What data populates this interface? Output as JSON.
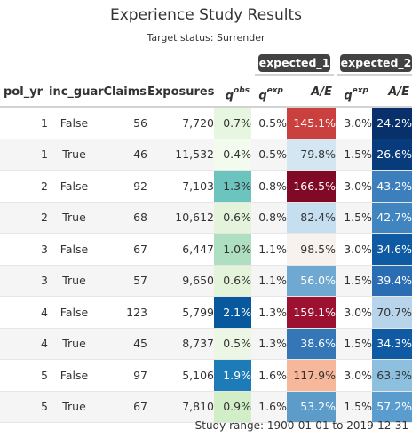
{
  "title": "Experience Study Results",
  "subtitle": "Target status: Surrender",
  "spanners": {
    "expected_1": "expected_1",
    "expected_2": "expected_2"
  },
  "headers": {
    "pol_yr": "pol_yr",
    "inc_guar": "inc_guar",
    "claims": "Claims",
    "exposures": "Exposures",
    "q_obs_base": "q",
    "q_obs_sup": "obs",
    "q_exp_base": "q",
    "q_exp_sup": "exp",
    "ae": "A/E",
    "q_exp2_base": "q",
    "q_exp2_sup": "exp",
    "ae2": "A/E"
  },
  "rows": [
    {
      "pol_yr": "1",
      "inc_guar": "False",
      "claims": "56",
      "exposures": "7,720",
      "q_obs": "0.7%",
      "q_exp1": "0.5%",
      "ae1": "145.1%",
      "q_exp2": "3.0%",
      "ae2": "24.2%"
    },
    {
      "pol_yr": "1",
      "inc_guar": "True",
      "claims": "46",
      "exposures": "11,532",
      "q_obs": "0.4%",
      "q_exp1": "0.5%",
      "ae1": "79.8%",
      "q_exp2": "1.5%",
      "ae2": "26.6%"
    },
    {
      "pol_yr": "2",
      "inc_guar": "False",
      "claims": "92",
      "exposures": "7,103",
      "q_obs": "1.3%",
      "q_exp1": "0.8%",
      "ae1": "166.5%",
      "q_exp2": "3.0%",
      "ae2": "43.2%"
    },
    {
      "pol_yr": "2",
      "inc_guar": "True",
      "claims": "68",
      "exposures": "10,612",
      "q_obs": "0.6%",
      "q_exp1": "0.8%",
      "ae1": "82.4%",
      "q_exp2": "1.5%",
      "ae2": "42.7%"
    },
    {
      "pol_yr": "3",
      "inc_guar": "False",
      "claims": "67",
      "exposures": "6,447",
      "q_obs": "1.0%",
      "q_exp1": "1.1%",
      "ae1": "98.5%",
      "q_exp2": "3.0%",
      "ae2": "34.6%"
    },
    {
      "pol_yr": "3",
      "inc_guar": "True",
      "claims": "57",
      "exposures": "9,650",
      "q_obs": "0.6%",
      "q_exp1": "1.1%",
      "ae1": "56.0%",
      "q_exp2": "1.5%",
      "ae2": "39.4%"
    },
    {
      "pol_yr": "4",
      "inc_guar": "False",
      "claims": "123",
      "exposures": "5,799",
      "q_obs": "2.1%",
      "q_exp1": "1.3%",
      "ae1": "159.1%",
      "q_exp2": "3.0%",
      "ae2": "70.7%"
    },
    {
      "pol_yr": "4",
      "inc_guar": "True",
      "claims": "45",
      "exposures": "8,737",
      "q_obs": "0.5%",
      "q_exp1": "1.3%",
      "ae1": "38.6%",
      "q_exp2": "1.5%",
      "ae2": "34.3%"
    },
    {
      "pol_yr": "5",
      "inc_guar": "False",
      "claims": "97",
      "exposures": "5,106",
      "q_obs": "1.9%",
      "q_exp1": "1.6%",
      "ae1": "117.9%",
      "q_exp2": "3.0%",
      "ae2": "63.3%"
    },
    {
      "pol_yr": "5",
      "inc_guar": "True",
      "claims": "67",
      "exposures": "7,810",
      "q_obs": "0.9%",
      "q_exp1": "1.6%",
      "ae1": "53.2%",
      "q_exp2": "1.5%",
      "ae2": "57.2%"
    }
  ],
  "colors": {
    "q_obs": [
      "#e7f6e0",
      "#f3fbee",
      "#6cc4bf",
      "#e3f4db",
      "#aedfc0",
      "#e3f4db",
      "#08589e",
      "#ebf7e4",
      "#1d7cb7",
      "#d2eec6"
    ],
    "q_obs_text": [
      "#333333",
      "#333333",
      "#333333",
      "#333333",
      "#333333",
      "#333333",
      "#ffffff",
      "#333333",
      "#ffffff",
      "#333333"
    ],
    "ae1": [
      "#c9403f",
      "#d3e6f1",
      "#800a25",
      "#c5def0",
      "#f8f2ef",
      "#6fa9d1",
      "#9c1030",
      "#3576b6",
      "#f6b79b",
      "#5d9bc9"
    ],
    "ae1_text": [
      "#ffffff",
      "#333333",
      "#ffffff",
      "#333333",
      "#333333",
      "#ffffff",
      "#ffffff",
      "#ffffff",
      "#333333",
      "#ffffff"
    ],
    "ae2": [
      "#08306b",
      "#083b7c",
      "#3c7fbc",
      "#4084c0",
      "#0f5ba3",
      "#2a6db3",
      "#b7d4ea",
      "#0f5aa2",
      "#8dc0df",
      "#5a9ccd"
    ],
    "ae2_text": [
      "#ffffff",
      "#ffffff",
      "#ffffff",
      "#ffffff",
      "#ffffff",
      "#ffffff",
      "#333333",
      "#ffffff",
      "#333333",
      "#ffffff"
    ]
  },
  "footer": "Study range: 1900-01-01 to 2019-12-31"
}
